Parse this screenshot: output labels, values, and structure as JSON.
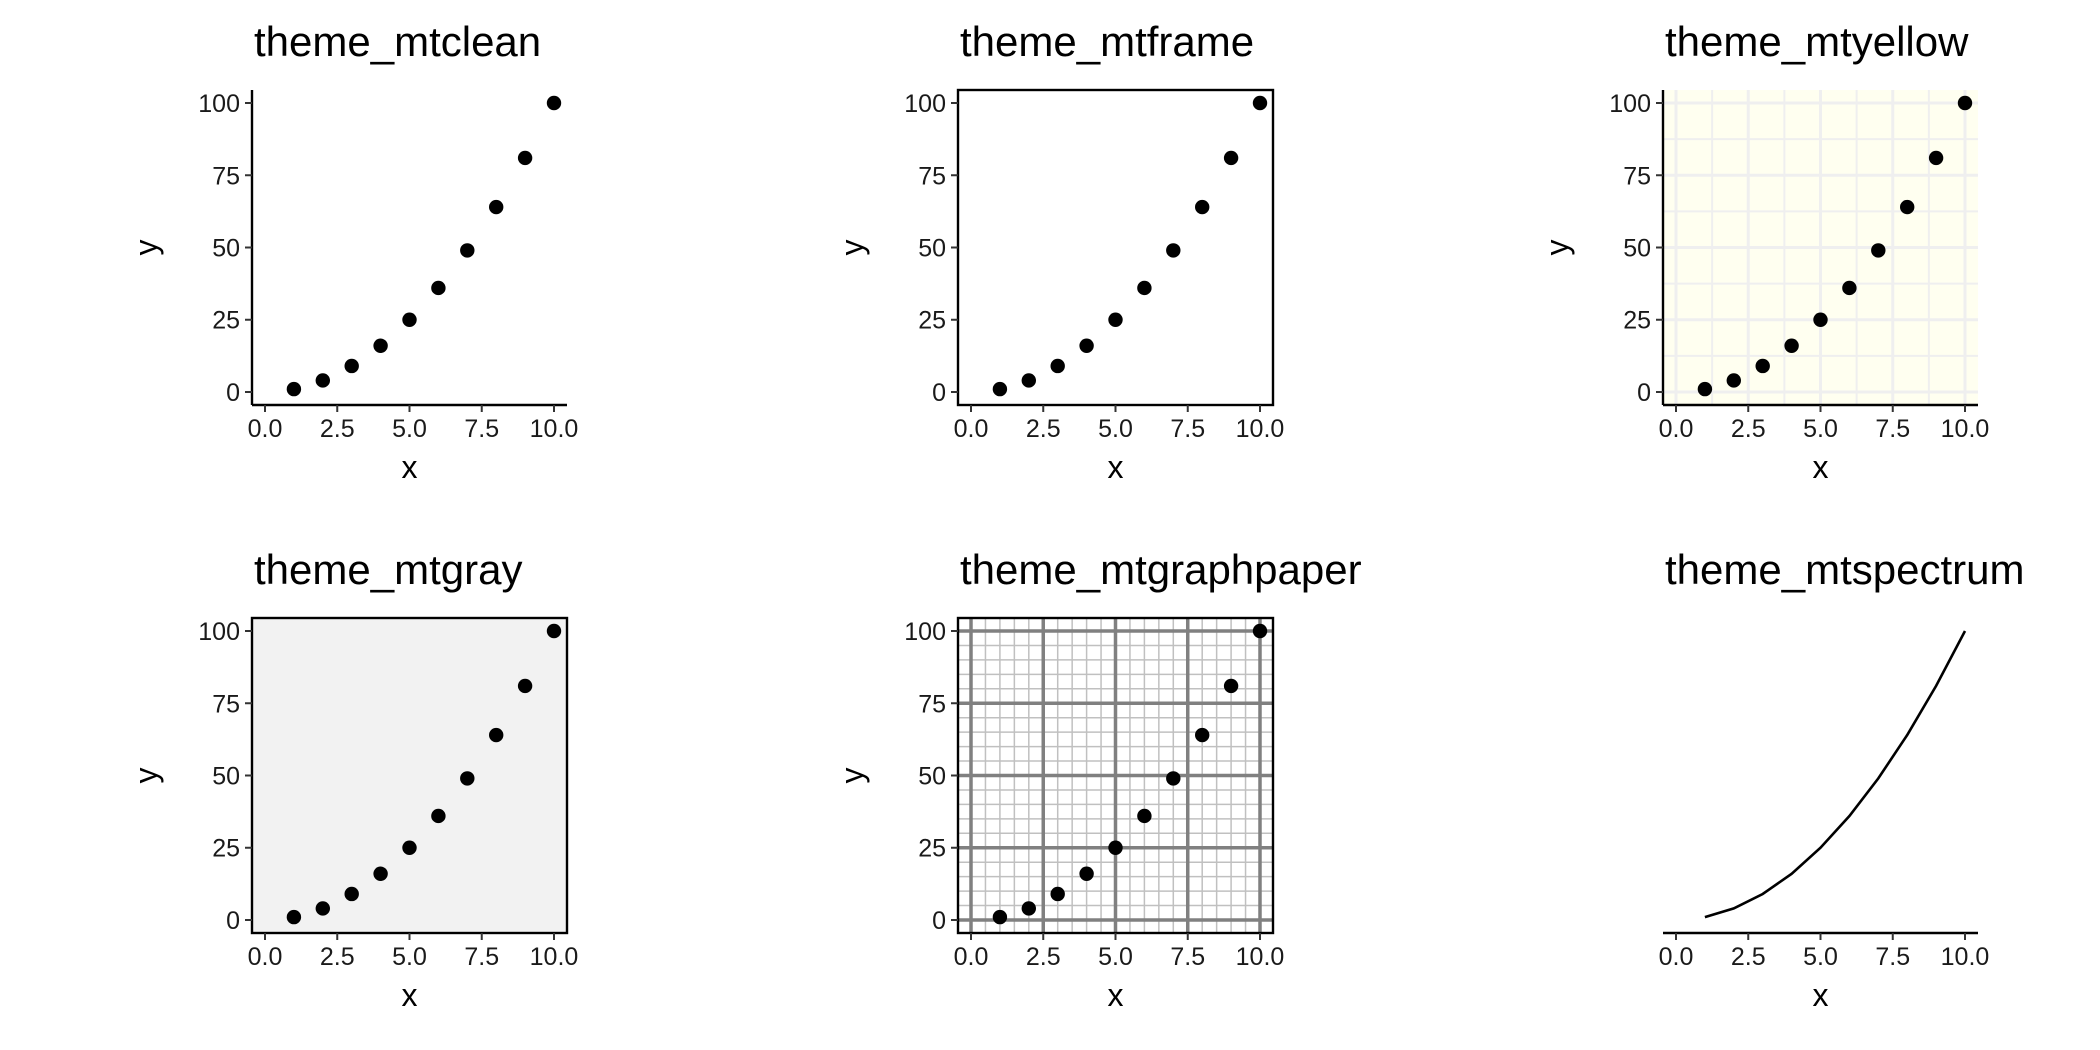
{
  "chart_data": [
    {
      "type": "scatter",
      "title": "theme_mtclean",
      "xlabel": "x",
      "ylabel": "y",
      "x": [
        1,
        2,
        3,
        4,
        5,
        6,
        7,
        8,
        9,
        10
      ],
      "y": [
        1,
        4,
        9,
        16,
        25,
        36,
        49,
        64,
        81,
        100
      ],
      "xlim": [
        0,
        10
      ],
      "ylim": [
        0,
        100
      ],
      "xticks": [
        "0.0",
        "2.5",
        "5.0",
        "7.5",
        "10.0"
      ],
      "yticks": [
        "0",
        "25",
        "50",
        "75",
        "100"
      ],
      "grid": false,
      "background": "#ffffff"
    },
    {
      "type": "scatter",
      "title": "theme_mtframe",
      "xlabel": "x",
      "ylabel": "y",
      "x": [
        1,
        2,
        3,
        4,
        5,
        6,
        7,
        8,
        9,
        10
      ],
      "y": [
        1,
        4,
        9,
        16,
        25,
        36,
        49,
        64,
        81,
        100
      ],
      "xlim": [
        0,
        10
      ],
      "ylim": [
        0,
        100
      ],
      "xticks": [
        "0.0",
        "2.5",
        "5.0",
        "7.5",
        "10.0"
      ],
      "yticks": [
        "0",
        "25",
        "50",
        "75",
        "100"
      ],
      "grid": false,
      "frame": true,
      "background": "#ffffff"
    },
    {
      "type": "scatter",
      "title": "theme_mtyellow",
      "xlabel": "x",
      "ylabel": "y",
      "x": [
        1,
        2,
        3,
        4,
        5,
        6,
        7,
        8,
        9,
        10
      ],
      "y": [
        1,
        4,
        9,
        16,
        25,
        36,
        49,
        64,
        81,
        100
      ],
      "xlim": [
        0,
        10
      ],
      "ylim": [
        0,
        100
      ],
      "xticks": [
        "0.0",
        "2.5",
        "5.0",
        "7.5",
        "10.0"
      ],
      "yticks": [
        "0",
        "25",
        "50",
        "75",
        "100"
      ],
      "grid": true,
      "background": "#fffff0"
    },
    {
      "type": "scatter",
      "title": "theme_mtgray",
      "xlabel": "x",
      "ylabel": "y",
      "x": [
        1,
        2,
        3,
        4,
        5,
        6,
        7,
        8,
        9,
        10
      ],
      "y": [
        1,
        4,
        9,
        16,
        25,
        36,
        49,
        64,
        81,
        100
      ],
      "xlim": [
        0,
        10
      ],
      "ylim": [
        0,
        100
      ],
      "xticks": [
        "0.0",
        "2.5",
        "5.0",
        "7.5",
        "10.0"
      ],
      "yticks": [
        "0",
        "25",
        "50",
        "75",
        "100"
      ],
      "grid": false,
      "frame": true,
      "background": "#f2f2f2"
    },
    {
      "type": "scatter",
      "title": "theme_mtgraphpaper",
      "xlabel": "x",
      "ylabel": "y",
      "x": [
        1,
        2,
        3,
        4,
        5,
        6,
        7,
        8,
        9,
        10
      ],
      "y": [
        1,
        4,
        9,
        16,
        25,
        36,
        49,
        64,
        81,
        100
      ],
      "xlim": [
        0,
        10
      ],
      "ylim": [
        0,
        100
      ],
      "xticks": [
        "0.0",
        "2.5",
        "5.0",
        "7.5",
        "10.0"
      ],
      "yticks": [
        "0",
        "25",
        "50",
        "75",
        "100"
      ],
      "grid": true,
      "grid_major_color": "#808080",
      "grid_minor_color": "#c0c0c0",
      "frame": true,
      "background": "#ffffff"
    },
    {
      "type": "line",
      "title": "theme_mtspectrum",
      "xlabel": "x",
      "ylabel": "",
      "x": [
        1,
        2,
        3,
        4,
        5,
        6,
        7,
        8,
        9,
        10
      ],
      "y": [
        1,
        4,
        9,
        16,
        25,
        36,
        49,
        64,
        81,
        100
      ],
      "xlim": [
        0,
        10
      ],
      "ylim": [
        0,
        100
      ],
      "xticks": [
        "0.0",
        "2.5",
        "5.0",
        "7.5",
        "10.0"
      ],
      "yticks": [],
      "grid": false,
      "background": "#ffffff"
    }
  ]
}
